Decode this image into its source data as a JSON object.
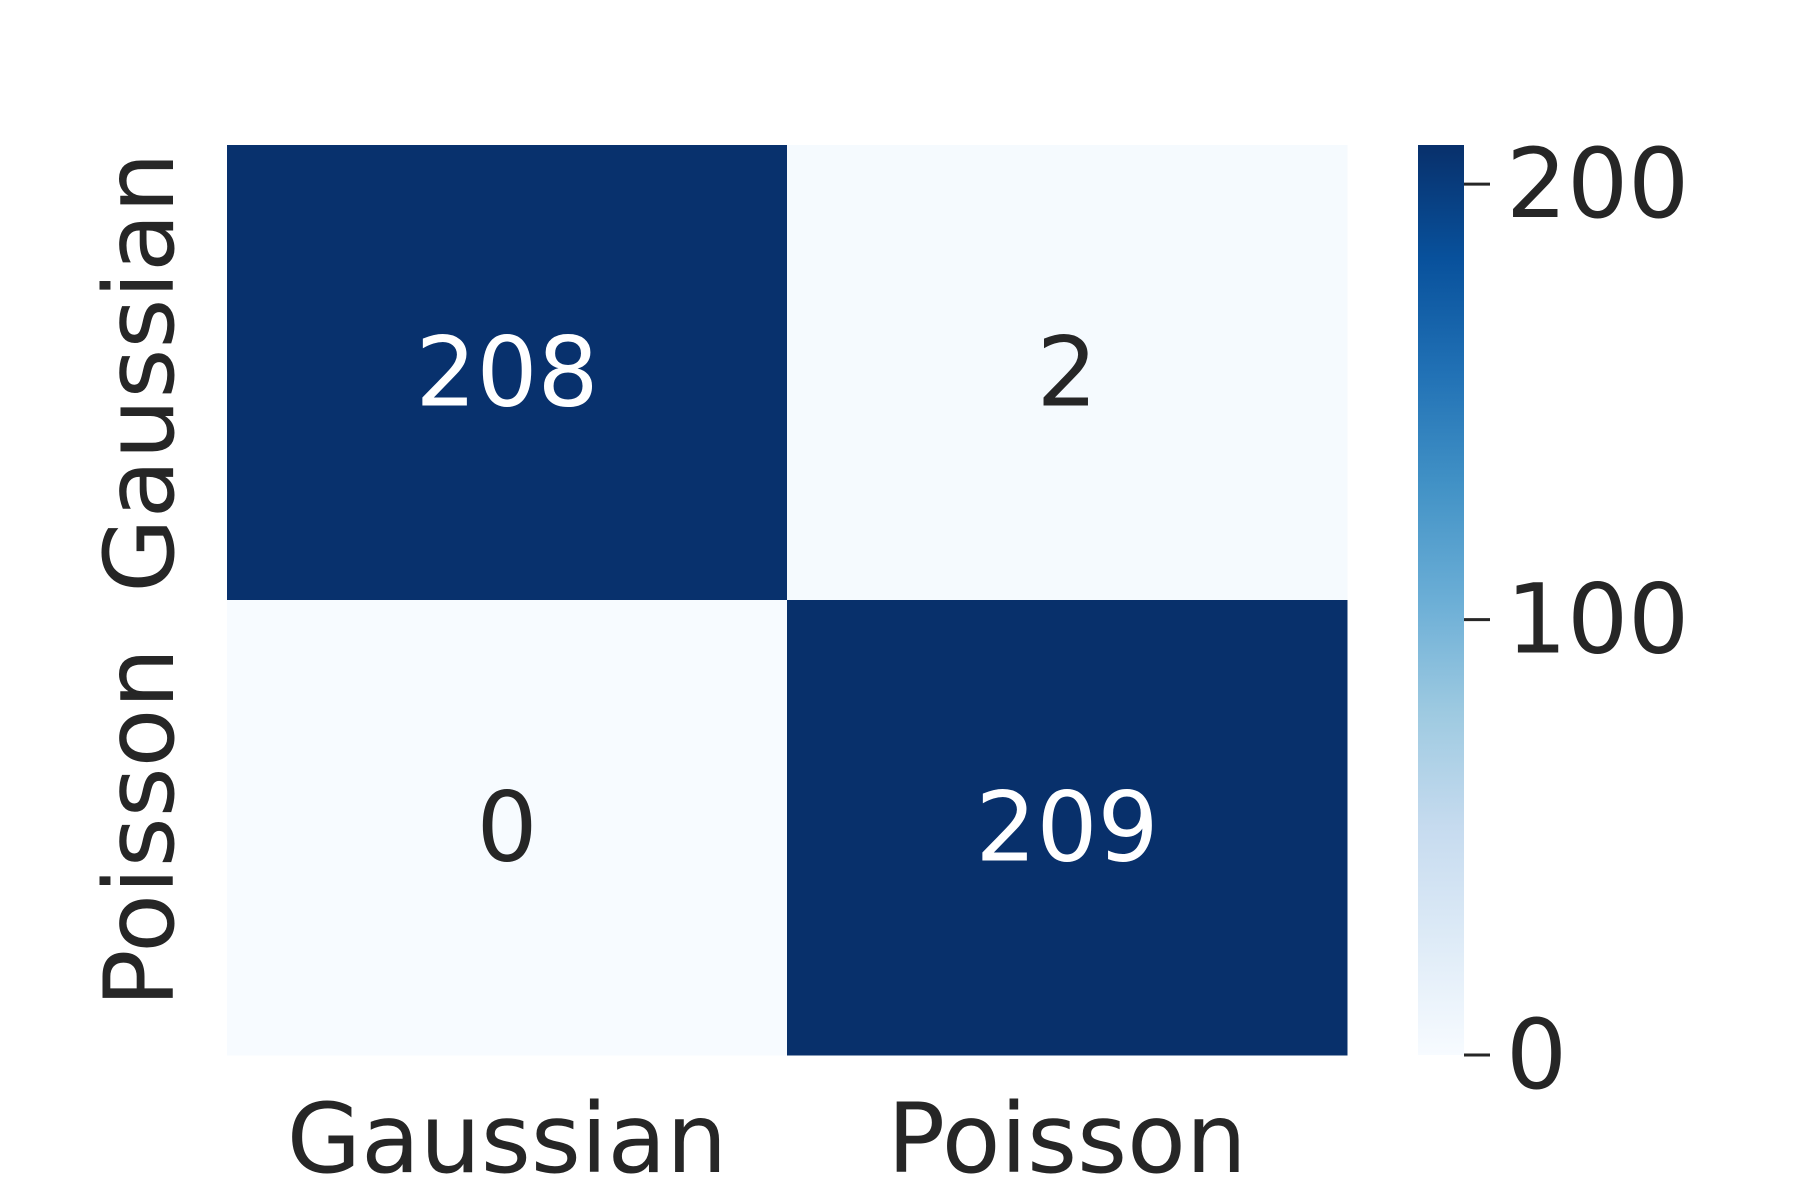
{
  "chart_data": {
    "type": "heatmap",
    "title": "",
    "xlabel": "",
    "ylabel": "",
    "x_categories": [
      "Gaussian",
      "Poisson"
    ],
    "y_categories": [
      "Gaussian",
      "Poisson"
    ],
    "values": [
      [
        208,
        2
      ],
      [
        0,
        209
      ]
    ],
    "colormap": "Blues",
    "colorbar": {
      "min": 0,
      "max": 209,
      "ticks": [
        0,
        100,
        200
      ]
    },
    "annotations": true,
    "grid": false
  },
  "colors": {
    "dark": "#08306b",
    "light": "#f7fbff",
    "text_dark": "#262626",
    "text_light": "#ffffff"
  }
}
